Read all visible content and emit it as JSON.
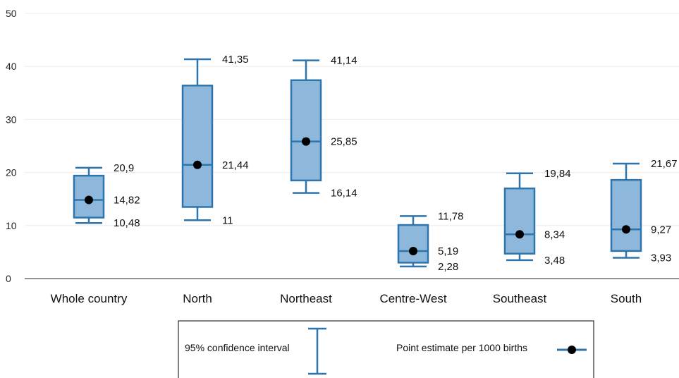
{
  "chart_data": {
    "type": "box",
    "y_ticks": [
      "0",
      "10",
      "20",
      "30",
      "40",
      "50"
    ],
    "ylim": [
      0,
      50
    ],
    "grid": true,
    "categories": [
      "Whole country",
      "North",
      "Northeast",
      "Centre-West",
      "Southeast",
      "South"
    ],
    "boxes": [
      {
        "category": "Whole country",
        "lower": 10.48,
        "q1": 11.5,
        "estimate": 14.82,
        "q3": 19.4,
        "upper": 20.9,
        "labels": {
          "upper": "20,9",
          "estimate": "14,82",
          "lower": "10,48"
        }
      },
      {
        "category": "North",
        "lower": 11,
        "q1": 13.5,
        "estimate": 21.44,
        "q3": 36.4,
        "upper": 41.35,
        "labels": {
          "upper": "41,35",
          "estimate": "21,44",
          "lower": "11"
        }
      },
      {
        "category": "Northeast",
        "lower": 16.14,
        "q1": 18.5,
        "estimate": 25.85,
        "q3": 37.4,
        "upper": 41.14,
        "labels": {
          "upper": "41,14",
          "estimate": "25,85",
          "lower": "16,14"
        }
      },
      {
        "category": "Centre-West",
        "lower": 2.28,
        "q1": 3.0,
        "estimate": 5.19,
        "q3": 10.1,
        "upper": 11.78,
        "labels": {
          "upper": "11,78",
          "estimate": "5,19",
          "lower": "2,28"
        }
      },
      {
        "category": "Southeast",
        "lower": 3.48,
        "q1": 4.7,
        "estimate": 8.34,
        "q3": 17.0,
        "upper": 19.84,
        "labels": {
          "upper": "19,84",
          "estimate": "8,34",
          "lower": "3,48"
        }
      },
      {
        "category": "South",
        "lower": 3.93,
        "q1": 5.2,
        "estimate": 9.27,
        "q3": 18.6,
        "upper": 21.67,
        "labels": {
          "upper": "21,67",
          "estimate": "9,27",
          "lower": "3,93"
        }
      }
    ],
    "legend": {
      "placement": "bottom-center",
      "ci_label": "95% confidence interval",
      "point_label": "Point estimate per 1000 births"
    },
    "colors": {
      "box_fill": "#8db8dc",
      "box_stroke": "#2f75ad",
      "point": "#000000",
      "grid": "#ececec",
      "axis": "#555555"
    }
  }
}
